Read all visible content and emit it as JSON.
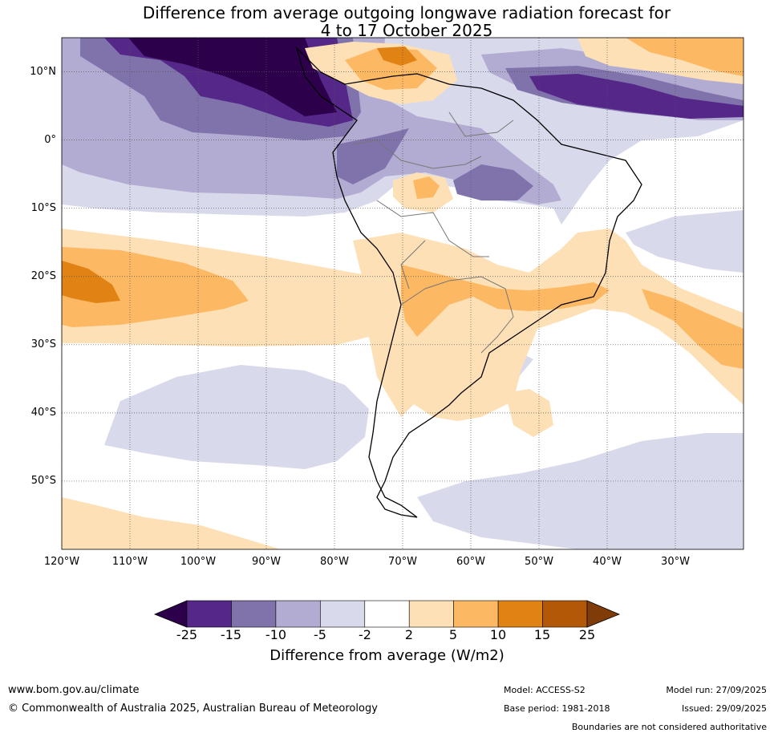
{
  "title": {
    "line1": "Difference from average outgoing longwave radiation forecast for",
    "line2": "4 to 17 October 2025"
  },
  "axes": {
    "lat_labels": [
      "10°N",
      "0°",
      "10°S",
      "20°S",
      "30°S",
      "40°S",
      "50°S"
    ],
    "lon_labels": [
      "120°W",
      "110°W",
      "100°W",
      "90°W",
      "80°W",
      "70°W",
      "60°W",
      "50°W",
      "40°W",
      "30°W"
    ],
    "lat_values": [
      10,
      0,
      -10,
      -20,
      -30,
      -40,
      -50
    ],
    "lon_values": [
      -120,
      -110,
      -100,
      -90,
      -80,
      -70,
      -60,
      -50,
      -40,
      -30
    ],
    "lat_range": [
      -60,
      15
    ],
    "lon_range": [
      -120,
      -20
    ]
  },
  "colorbar": {
    "ticks": [
      "-25",
      "-15",
      "-10",
      "-5",
      "-2",
      "2",
      "5",
      "10",
      "15",
      "25"
    ],
    "colors": [
      "#2d004b",
      "#542788",
      "#8073ac",
      "#b2abd2",
      "#d8daeb",
      "#ffffff",
      "#fee0b6",
      "#fdb863",
      "#e08214",
      "#b35806",
      "#7f3b08"
    ],
    "label": "Difference from average (W/m2)"
  },
  "footer": {
    "website": "www.bom.gov.au/climate",
    "copyright": "© Commonwealth of Australia 2025, Australian Bureau of Meteorology",
    "model": "Model: ACCESS-S2",
    "base_period": "Base period: 1981-2018",
    "model_run": "Model run: 27/09/2025",
    "issued": "Issued: 29/09/2025",
    "boundaries_note": "Boundaries are not considered authoritative"
  }
}
